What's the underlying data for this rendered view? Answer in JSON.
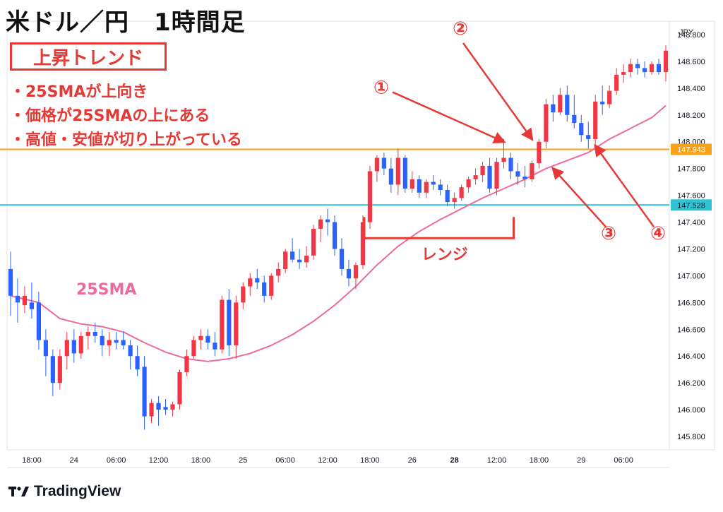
{
  "title": "米ドル／円　1時間足",
  "trend_label": "上昇トレンド",
  "bullets": [
    "・25SMAが上向き",
    "・価格が25SMAの上にある",
    "・高値・安値が切り上がっている"
  ],
  "brand": "TradingView",
  "currency": "JPY",
  "colors": {
    "up": "#f23645",
    "down": "#2962ff",
    "sma": "#ec6aa0",
    "resistance": "#f7a21b",
    "support": "#2ec4d6",
    "annotation": "#e53935"
  },
  "chart_data": {
    "type": "candlestick",
    "y_axis": {
      "min": 145.7,
      "max": 148.9,
      "ticks": [
        145.8,
        146.0,
        146.2,
        146.4,
        146.6,
        146.8,
        147.0,
        147.2,
        147.4,
        147.6,
        147.8,
        148.0,
        148.2,
        148.4,
        148.6,
        148.8
      ]
    },
    "x_ticks": [
      {
        "i": 3,
        "label": "18:00"
      },
      {
        "i": 9,
        "label": "24"
      },
      {
        "i": 15,
        "label": "06:00"
      },
      {
        "i": 21,
        "label": "12:00"
      },
      {
        "i": 27,
        "label": "18:00"
      },
      {
        "i": 33,
        "label": "25"
      },
      {
        "i": 39,
        "label": "06:00"
      },
      {
        "i": 45,
        "label": "12:00"
      },
      {
        "i": 51,
        "label": "18:00"
      },
      {
        "i": 57,
        "label": "26"
      },
      {
        "i": 63,
        "label": "28",
        "bold": true
      },
      {
        "i": 69,
        "label": "12:00"
      },
      {
        "i": 75,
        "label": "18:00"
      },
      {
        "i": 81,
        "label": "29"
      },
      {
        "i": 87,
        "label": "06:00"
      }
    ],
    "horizontal_lines": [
      {
        "value": 147.943,
        "label": "147.943",
        "role": "resistance"
      },
      {
        "value": 147.528,
        "label": "147.528",
        "role": "support"
      }
    ],
    "candles": [
      [
        147.05,
        147.18,
        146.7,
        146.85
      ],
      [
        146.85,
        146.98,
        146.65,
        146.8
      ],
      [
        146.78,
        146.92,
        146.72,
        146.85
      ],
      [
        146.8,
        146.95,
        146.68,
        146.75
      ],
      [
        146.8,
        146.88,
        146.45,
        146.52
      ],
      [
        146.52,
        146.6,
        146.25,
        146.4
      ],
      [
        146.4,
        146.45,
        146.1,
        146.2
      ],
      [
        146.2,
        146.45,
        146.15,
        146.4
      ],
      [
        146.4,
        146.58,
        146.3,
        146.52
      ],
      [
        146.52,
        146.6,
        146.35,
        146.42
      ],
      [
        146.42,
        146.58,
        146.38,
        146.55
      ],
      [
        146.55,
        146.62,
        146.45,
        146.58
      ],
      [
        146.58,
        146.65,
        146.5,
        146.55
      ],
      [
        146.55,
        146.6,
        146.4,
        146.48
      ],
      [
        146.48,
        146.58,
        146.4,
        146.52
      ],
      [
        146.52,
        146.58,
        146.45,
        146.5
      ],
      [
        146.52,
        146.58,
        146.45,
        146.48
      ],
      [
        146.48,
        146.52,
        146.3,
        146.4
      ],
      [
        146.4,
        146.48,
        146.25,
        146.3
      ],
      [
        146.32,
        146.4,
        145.85,
        145.95
      ],
      [
        145.95,
        146.08,
        145.9,
        146.05
      ],
      [
        146.05,
        146.1,
        145.88,
        146.0
      ],
      [
        146.02,
        146.08,
        145.96,
        146.0
      ],
      [
        146.0,
        146.06,
        145.95,
        146.04
      ],
      [
        146.04,
        146.3,
        146.0,
        146.28
      ],
      [
        146.28,
        146.45,
        146.25,
        146.4
      ],
      [
        146.4,
        146.55,
        146.38,
        146.52
      ],
      [
        146.52,
        146.6,
        146.45,
        146.55
      ],
      [
        146.55,
        146.6,
        146.45,
        146.5
      ],
      [
        146.5,
        146.58,
        146.4,
        146.45
      ],
      [
        146.45,
        146.85,
        146.42,
        146.82
      ],
      [
        146.82,
        146.9,
        146.4,
        146.48
      ],
      [
        146.48,
        146.85,
        146.38,
        146.8
      ],
      [
        146.8,
        146.95,
        146.75,
        146.92
      ],
      [
        146.92,
        147.02,
        146.85,
        146.98
      ],
      [
        146.98,
        147.05,
        146.9,
        146.95
      ],
      [
        146.95,
        147.0,
        146.8,
        146.85
      ],
      [
        146.85,
        147.02,
        146.82,
        147.0
      ],
      [
        147.0,
        147.1,
        146.95,
        147.05
      ],
      [
        147.05,
        147.2,
        147.02,
        147.18
      ],
      [
        147.18,
        147.28,
        147.1,
        147.12
      ],
      [
        147.12,
        147.2,
        147.05,
        147.1
      ],
      [
        147.1,
        147.22,
        147.06,
        147.15
      ],
      [
        147.15,
        147.38,
        147.12,
        147.35
      ],
      [
        147.35,
        147.45,
        147.25,
        147.42
      ],
      [
        147.42,
        147.5,
        147.3,
        147.4
      ],
      [
        147.4,
        147.45,
        147.15,
        147.2
      ],
      [
        147.2,
        147.28,
        147.0,
        147.05
      ],
      [
        147.05,
        147.12,
        146.92,
        146.98
      ],
      [
        146.98,
        147.1,
        146.9,
        147.08
      ],
      [
        147.08,
        147.45,
        147.05,
        147.4
      ],
      [
        147.4,
        147.82,
        147.35,
        147.78
      ],
      [
        147.78,
        147.9,
        147.7,
        147.88
      ],
      [
        147.88,
        147.92,
        147.75,
        147.8
      ],
      [
        147.8,
        147.88,
        147.62,
        147.68
      ],
      [
        147.68,
        147.95,
        147.6,
        147.88
      ],
      [
        147.88,
        147.9,
        147.62,
        147.65
      ],
      [
        147.65,
        147.78,
        147.62,
        147.72
      ],
      [
        147.72,
        147.75,
        147.58,
        147.62
      ],
      [
        147.62,
        147.72,
        147.58,
        147.7
      ],
      [
        147.7,
        147.75,
        147.64,
        147.68
      ],
      [
        147.68,
        147.72,
        147.6,
        147.64
      ],
      [
        147.64,
        147.68,
        147.52,
        147.55
      ],
      [
        147.55,
        147.62,
        147.5,
        147.58
      ],
      [
        147.58,
        147.68,
        147.56,
        147.66
      ],
      [
        147.66,
        147.74,
        147.62,
        147.72
      ],
      [
        147.72,
        147.8,
        147.68,
        147.75
      ],
      [
        147.75,
        147.85,
        147.7,
        147.82
      ],
      [
        147.82,
        147.88,
        147.62,
        147.65
      ],
      [
        147.65,
        147.88,
        147.6,
        147.85
      ],
      [
        147.85,
        148.02,
        147.8,
        147.88
      ],
      [
        147.88,
        147.92,
        147.72,
        147.78
      ],
      [
        147.78,
        147.84,
        147.68,
        147.74
      ],
      [
        147.74,
        147.82,
        147.66,
        147.72
      ],
      [
        147.72,
        147.86,
        147.7,
        147.84
      ],
      [
        147.84,
        148.02,
        147.8,
        148.0
      ],
      [
        148.0,
        148.32,
        147.95,
        148.28
      ],
      [
        148.28,
        148.35,
        148.15,
        148.22
      ],
      [
        148.22,
        148.4,
        148.2,
        148.35
      ],
      [
        148.35,
        148.42,
        148.15,
        148.2
      ],
      [
        148.2,
        148.35,
        148.1,
        148.14
      ],
      [
        148.14,
        148.2,
        148.0,
        148.05
      ],
      [
        148.05,
        148.15,
        147.95,
        148.02
      ],
      [
        148.02,
        148.35,
        147.98,
        148.3
      ],
      [
        148.3,
        148.42,
        148.2,
        148.28
      ],
      [
        148.28,
        148.42,
        148.25,
        148.38
      ],
      [
        148.38,
        148.55,
        148.35,
        148.5
      ],
      [
        148.5,
        148.58,
        148.44,
        148.52
      ],
      [
        148.52,
        148.62,
        148.48,
        148.58
      ],
      [
        148.58,
        148.62,
        148.5,
        148.55
      ],
      [
        148.55,
        148.6,
        148.48,
        148.52
      ],
      [
        148.52,
        148.6,
        148.5,
        148.58
      ],
      [
        148.58,
        148.62,
        148.5,
        148.52
      ],
      [
        148.52,
        148.72,
        148.45,
        148.68
      ]
    ],
    "sma25": [
      [
        0,
        146.85
      ],
      [
        4,
        146.8
      ],
      [
        7,
        146.68
      ],
      [
        10,
        146.64
      ],
      [
        13,
        146.62
      ],
      [
        16,
        146.58
      ],
      [
        19,
        146.5
      ],
      [
        22,
        146.43
      ],
      [
        25,
        146.38
      ],
      [
        28,
        146.36
      ],
      [
        31,
        146.38
      ],
      [
        34,
        146.42
      ],
      [
        37,
        146.48
      ],
      [
        40,
        146.56
      ],
      [
        43,
        146.66
      ],
      [
        46,
        146.78
      ],
      [
        49,
        146.92
      ],
      [
        52,
        147.08
      ],
      [
        55,
        147.22
      ],
      [
        58,
        147.33
      ],
      [
        61,
        147.42
      ],
      [
        64,
        147.5
      ],
      [
        67,
        147.58
      ],
      [
        70,
        147.65
      ],
      [
        73,
        147.72
      ],
      [
        76,
        147.8
      ],
      [
        79,
        147.86
      ],
      [
        82,
        147.92
      ],
      [
        85,
        148.02
      ],
      [
        88,
        148.1
      ],
      [
        91,
        148.18
      ],
      [
        93,
        148.27
      ]
    ],
    "sma_label": "25SMA",
    "range_label": "レンジ",
    "markers": [
      {
        "label": "①",
        "arrow_to_i": 70,
        "arrow_to_v": 148.0
      },
      {
        "label": "②",
        "arrow_to_i": 74,
        "arrow_to_v": 148.02
      },
      {
        "label": "③",
        "arrow_to_i": 77,
        "arrow_to_v": 147.8
      },
      {
        "label": "④",
        "arrow_to_i": 83,
        "arrow_to_v": 147.97
      }
    ]
  }
}
